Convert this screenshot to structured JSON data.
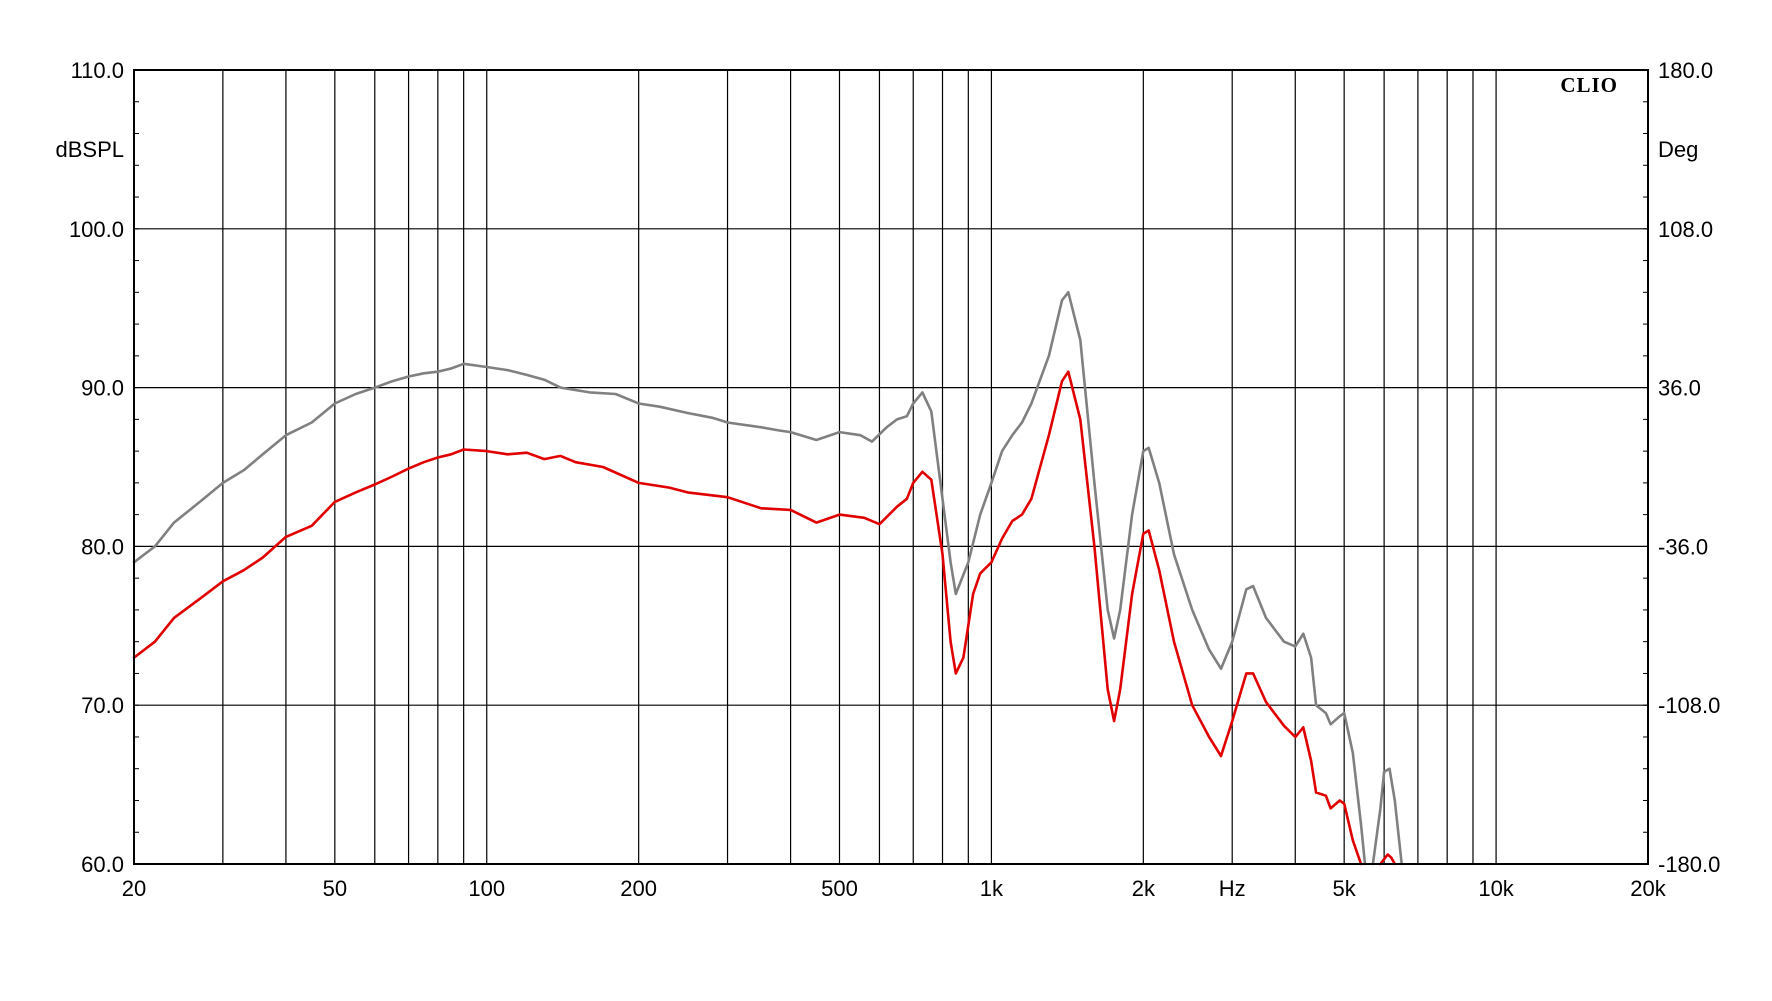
{
  "chart_data": {
    "type": "line",
    "brand": "CLIO",
    "xlabel": "Hz",
    "ylabel": "dBSPL",
    "y2label": "Deg",
    "x_scale": "log",
    "xlim": [
      20,
      20000
    ],
    "ylim": [
      60,
      110
    ],
    "y2lim": [
      -180,
      180
    ],
    "grid": true,
    "x_ticks": [
      {
        "value": 20,
        "label": "20"
      },
      {
        "value": 50,
        "label": "50"
      },
      {
        "value": 100,
        "label": "100"
      },
      {
        "value": 200,
        "label": "200"
      },
      {
        "value": 500,
        "label": "500"
      },
      {
        "value": 1000,
        "label": "1k"
      },
      {
        "value": 2000,
        "label": "2k"
      },
      {
        "value": 3000,
        "label": "Hz"
      },
      {
        "value": 5000,
        "label": "5k"
      },
      {
        "value": 10000,
        "label": "10k"
      },
      {
        "value": 20000,
        "label": "20k"
      }
    ],
    "y_ticks": [
      {
        "value": 110,
        "label": "110.0"
      },
      {
        "value": 100,
        "label": "100.0"
      },
      {
        "value": 90,
        "label": "90.0"
      },
      {
        "value": 80,
        "label": "80.0"
      },
      {
        "value": 70,
        "label": "70.0"
      },
      {
        "value": 60,
        "label": "60.0"
      }
    ],
    "y2_ticks": [
      {
        "value": 180,
        "label": "180.0"
      },
      {
        "value": 108,
        "label": "108.0"
      },
      {
        "value": 36,
        "label": "36.0"
      },
      {
        "value": -36,
        "label": "-36.0"
      },
      {
        "value": -108,
        "label": "-108.0"
      },
      {
        "value": -180,
        "label": "-180.0"
      }
    ],
    "series": [
      {
        "color": "#808080",
        "points": [
          [
            20,
            79.0
          ],
          [
            22,
            80.0
          ],
          [
            24,
            81.5
          ],
          [
            27,
            82.8
          ],
          [
            30,
            84.0
          ],
          [
            33,
            84.8
          ],
          [
            36,
            85.8
          ],
          [
            40,
            87.0
          ],
          [
            45,
            87.8
          ],
          [
            50,
            89.0
          ],
          [
            55,
            89.6
          ],
          [
            60,
            90.0
          ],
          [
            65,
            90.4
          ],
          [
            70,
            90.7
          ],
          [
            75,
            90.9
          ],
          [
            80,
            91.0
          ],
          [
            85,
            91.2
          ],
          [
            90,
            91.5
          ],
          [
            100,
            91.3
          ],
          [
            110,
            91.1
          ],
          [
            120,
            90.8
          ],
          [
            130,
            90.5
          ],
          [
            140,
            90.0
          ],
          [
            160,
            89.7
          ],
          [
            180,
            89.6
          ],
          [
            200,
            89.0
          ],
          [
            220,
            88.8
          ],
          [
            250,
            88.4
          ],
          [
            280,
            88.1
          ],
          [
            300,
            87.8
          ],
          [
            350,
            87.5
          ],
          [
            380,
            87.3
          ],
          [
            400,
            87.2
          ],
          [
            450,
            86.7
          ],
          [
            500,
            87.2
          ],
          [
            550,
            87.0
          ],
          [
            580,
            86.6
          ],
          [
            620,
            87.5
          ],
          [
            650,
            88.0
          ],
          [
            680,
            88.2
          ],
          [
            700,
            89.0
          ],
          [
            730,
            89.7
          ],
          [
            760,
            88.5
          ],
          [
            800,
            83.0
          ],
          [
            830,
            79.0
          ],
          [
            850,
            77.0
          ],
          [
            900,
            79.0
          ],
          [
            950,
            82.0
          ],
          [
            1000,
            84.0
          ],
          [
            1050,
            86.0
          ],
          [
            1100,
            87.0
          ],
          [
            1150,
            87.8
          ],
          [
            1200,
            89.0
          ],
          [
            1300,
            92.0
          ],
          [
            1380,
            95.5
          ],
          [
            1420,
            96.0
          ],
          [
            1500,
            93.0
          ],
          [
            1600,
            84.0
          ],
          [
            1700,
            76.0
          ],
          [
            1750,
            74.2
          ],
          [
            1800,
            76.0
          ],
          [
            1900,
            82.0
          ],
          [
            2000,
            86.0
          ],
          [
            2050,
            86.2
          ],
          [
            2150,
            84.0
          ],
          [
            2300,
            79.5
          ],
          [
            2500,
            76.0
          ],
          [
            2700,
            73.5
          ],
          [
            2850,
            72.3
          ],
          [
            3000,
            74.0
          ],
          [
            3200,
            77.3
          ],
          [
            3300,
            77.5
          ],
          [
            3500,
            75.5
          ],
          [
            3800,
            74.0
          ],
          [
            4000,
            73.7
          ],
          [
            4150,
            74.5
          ],
          [
            4300,
            73.0
          ],
          [
            4400,
            70.0
          ],
          [
            4600,
            69.5
          ],
          [
            4700,
            68.8
          ],
          [
            4900,
            69.3
          ],
          [
            5000,
            69.5
          ],
          [
            5200,
            67.0
          ],
          [
            5400,
            62.5
          ],
          [
            5500,
            60.0
          ]
        ]
      },
      {
        "color": "#808080",
        "points": [
          [
            5700,
            60.0
          ],
          [
            5900,
            63.5
          ],
          [
            6000,
            65.8
          ],
          [
            6150,
            66.0
          ],
          [
            6300,
            64.0
          ],
          [
            6500,
            60.0
          ]
        ]
      },
      {
        "color": "#e00000",
        "points": [
          [
            20,
            73.0
          ],
          [
            22,
            74.0
          ],
          [
            24,
            75.5
          ],
          [
            27,
            76.7
          ],
          [
            30,
            77.8
          ],
          [
            33,
            78.5
          ],
          [
            36,
            79.3
          ],
          [
            40,
            80.6
          ],
          [
            45,
            81.3
          ],
          [
            50,
            82.8
          ],
          [
            55,
            83.4
          ],
          [
            60,
            83.9
          ],
          [
            65,
            84.4
          ],
          [
            70,
            84.9
          ],
          [
            75,
            85.3
          ],
          [
            80,
            85.6
          ],
          [
            85,
            85.8
          ],
          [
            90,
            86.1
          ],
          [
            100,
            86.0
          ],
          [
            110,
            85.8
          ],
          [
            120,
            85.9
          ],
          [
            130,
            85.5
          ],
          [
            140,
            85.7
          ],
          [
            150,
            85.3
          ],
          [
            170,
            85.0
          ],
          [
            200,
            84.0
          ],
          [
            230,
            83.7
          ],
          [
            250,
            83.4
          ],
          [
            300,
            83.1
          ],
          [
            350,
            82.4
          ],
          [
            400,
            82.3
          ],
          [
            450,
            81.5
          ],
          [
            500,
            82.0
          ],
          [
            560,
            81.8
          ],
          [
            600,
            81.4
          ],
          [
            650,
            82.5
          ],
          [
            680,
            83.0
          ],
          [
            700,
            84.0
          ],
          [
            730,
            84.7
          ],
          [
            760,
            84.2
          ],
          [
            800,
            79.5
          ],
          [
            830,
            74.0
          ],
          [
            850,
            72.0
          ],
          [
            880,
            73.0
          ],
          [
            920,
            77.0
          ],
          [
            950,
            78.3
          ],
          [
            1000,
            79.0
          ],
          [
            1050,
            80.5
          ],
          [
            1100,
            81.6
          ],
          [
            1150,
            82.0
          ],
          [
            1200,
            83.0
          ],
          [
            1300,
            87.0
          ],
          [
            1380,
            90.4
          ],
          [
            1420,
            91.0
          ],
          [
            1500,
            88.0
          ],
          [
            1600,
            80.0
          ],
          [
            1700,
            71.0
          ],
          [
            1750,
            69.0
          ],
          [
            1800,
            71.0
          ],
          [
            1900,
            77.0
          ],
          [
            2000,
            80.8
          ],
          [
            2050,
            81.0
          ],
          [
            2150,
            78.5
          ],
          [
            2300,
            74.0
          ],
          [
            2500,
            70.0
          ],
          [
            2700,
            68.0
          ],
          [
            2850,
            66.8
          ],
          [
            3000,
            69.0
          ],
          [
            3200,
            72.0
          ],
          [
            3300,
            72.0
          ],
          [
            3500,
            70.2
          ],
          [
            3800,
            68.7
          ],
          [
            4000,
            68.0
          ],
          [
            4150,
            68.6
          ],
          [
            4300,
            66.5
          ],
          [
            4400,
            64.5
          ],
          [
            4600,
            64.3
          ],
          [
            4700,
            63.5
          ],
          [
            4900,
            64.0
          ],
          [
            5000,
            63.8
          ],
          [
            5200,
            61.5
          ],
          [
            5400,
            60.0
          ]
        ]
      },
      {
        "color": "#e00000",
        "points": [
          [
            5900,
            60.0
          ],
          [
            6000,
            60.3
          ],
          [
            6100,
            60.6
          ],
          [
            6200,
            60.4
          ],
          [
            6300,
            60.0
          ]
        ]
      }
    ]
  }
}
